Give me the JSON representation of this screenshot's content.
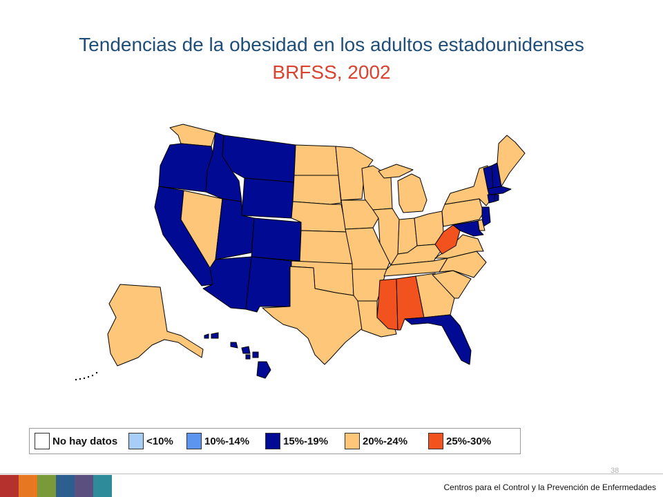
{
  "header": {
    "title": "Tendencias de la obesidad en los adultos estadounidenses",
    "subtitle": "BRFSS, 2002"
  },
  "colors": {
    "no_data": "#ffffff",
    "lt10": "#a6cef7",
    "c10_14": "#5b95ef",
    "c15_19": "#000a93",
    "c20_24": "#fdc678",
    "c25_30": "#f2531e",
    "border": "#000000",
    "title": "#1f4e79",
    "subtitle": "#d9432f"
  },
  "legend": [
    {
      "label": "No hay datos",
      "color": "#ffffff"
    },
    {
      "label": "<10%",
      "color": "#a6cef7"
    },
    {
      "label": "10%-14%",
      "color": "#5b95ef"
    },
    {
      "label": "15%-19%",
      "color": "#000a93"
    },
    {
      "label": "20%-24%",
      "color": "#fdc678"
    },
    {
      "label": "25%-30%",
      "color": "#f2531e"
    }
  ],
  "map_data": {
    "WA": "20%-24%",
    "OR": "15%-19%",
    "CA": "15%-19%",
    "NV": "20%-24%",
    "ID": "15%-19%",
    "MT": "15%-19%",
    "WY": "15%-19%",
    "UT": "15%-19%",
    "CO": "15%-19%",
    "AZ": "15%-19%",
    "NM": "15%-19%",
    "ND": "20%-24%",
    "SD": "20%-24%",
    "NE": "20%-24%",
    "KS": "20%-24%",
    "OK": "20%-24%",
    "TX": "20%-24%",
    "MN": "20%-24%",
    "IA": "20%-24%",
    "MO": "20%-24%",
    "AR": "20%-24%",
    "LA": "20%-24%",
    "WI": "20%-24%",
    "IL": "20%-24%",
    "MI": "20%-24%",
    "IN": "20%-24%",
    "OH": "20%-24%",
    "KY": "20%-24%",
    "TN": "20%-24%",
    "MS": "25%-30%",
    "AL": "25%-30%",
    "GA": "20%-24%",
    "FL": "15%-19%",
    "SC": "20%-24%",
    "NC": "20%-24%",
    "VA": "20%-24%",
    "WV": "25%-30%",
    "PA": "20%-24%",
    "NY": "20%-24%",
    "VT": "15%-19%",
    "NH": "15%-19%",
    "ME": "20%-24%",
    "MA": "15%-19%",
    "CT": "15%-19%",
    "RI": "15%-19%",
    "NJ": "15%-19%",
    "DE": "20%-24%",
    "MD": "15%-19%",
    "AK": "20%-24%",
    "HI": "15%-19%"
  },
  "footer": {
    "page_number": "38",
    "organization": "Centros para el Control y la Prevención de Enfermedades",
    "bar_colors": [
      "#b5312b",
      "#e87722",
      "#7a9a3a",
      "#2c5f8d",
      "#5b4f80",
      "#2e8b9a"
    ]
  }
}
